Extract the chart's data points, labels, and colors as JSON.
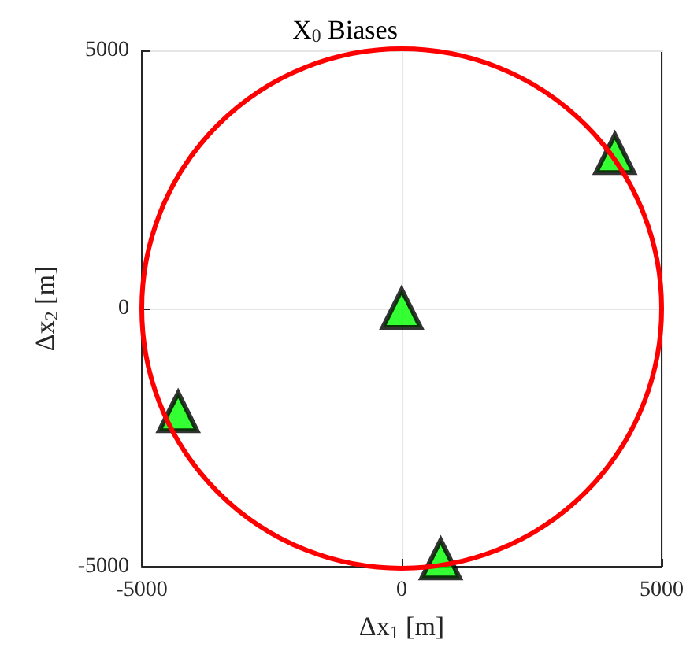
{
  "chart_data": {
    "type": "scatter",
    "title": "X$_{0}$ Biases",
    "xlabel": "Δx$_{1}$ [m]",
    "ylabel": "Δx$_{2}$ [m]",
    "xlim": [
      -5000,
      5000
    ],
    "ylim": [
      -5000,
      5000
    ],
    "xticks": [
      -5000,
      0,
      5000
    ],
    "yticks": [
      -5000,
      0,
      5000
    ],
    "grid": true,
    "series": [
      {
        "color": "#00ff00",
        "marker": "triangle",
        "x": [
          0,
          4100,
          -4300,
          750
        ],
        "values": [
          0,
          3000,
          -2000,
          -4850
        ]
      }
    ]
  }
}
